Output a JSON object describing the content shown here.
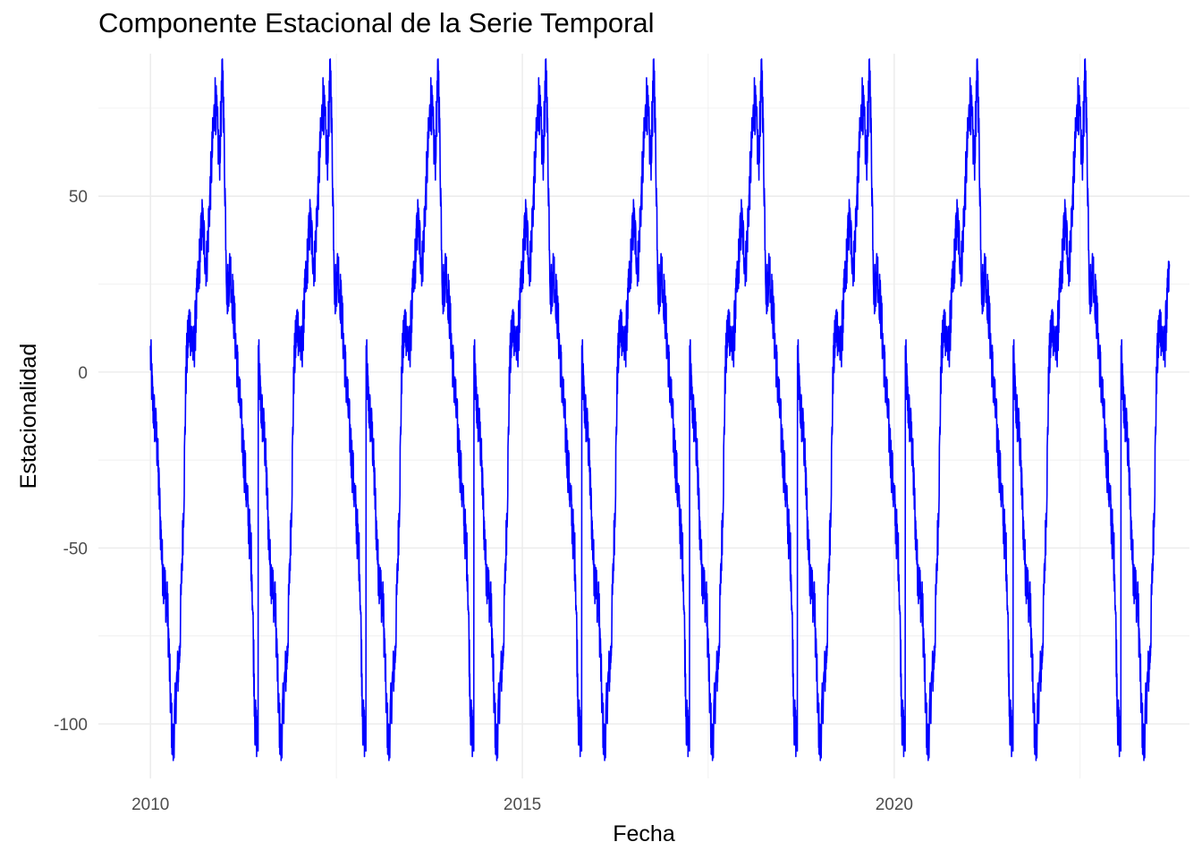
{
  "chart_data": {
    "type": "line",
    "title": "Componente Estacional de la Serie Temporal",
    "xlabel": "Fecha",
    "ylabel": "Estacionalidad",
    "x_ticks": [
      "2010",
      "2015",
      "2020"
    ],
    "x_tick_values": [
      2010,
      2015,
      2020
    ],
    "y_ticks": [
      "-100",
      "-50",
      "0",
      "50"
    ],
    "y_tick_values": [
      -100,
      -50,
      0,
      50
    ],
    "xlim": [
      2009.3,
      2023.97
    ],
    "ylim": [
      -115.5,
      90.5
    ],
    "grid": true,
    "legend": "none",
    "line_color": "#0000ff",
    "period_years": 1.45,
    "cycle_count": 9.5,
    "series": [
      {
        "x_start": 2010.0,
        "x_end": 2023.7,
        "cycle_profile": [
          {
            "phase": 0.0,
            "value": 5
          },
          {
            "phase": 0.02,
            "value": -8
          },
          {
            "phase": 0.06,
            "value": -20
          },
          {
            "phase": 0.11,
            "value": -55
          },
          {
            "phase": 0.16,
            "value": -68
          },
          {
            "phase": 0.19,
            "value": -97
          },
          {
            "phase": 0.21,
            "value": -107
          },
          {
            "phase": 0.24,
            "value": -90
          },
          {
            "phase": 0.27,
            "value": -80
          },
          {
            "phase": 0.31,
            "value": -35
          },
          {
            "phase": 0.33,
            "value": 0
          },
          {
            "phase": 0.36,
            "value": 15
          },
          {
            "phase": 0.4,
            "value": 5
          },
          {
            "phase": 0.44,
            "value": 25
          },
          {
            "phase": 0.48,
            "value": 43
          },
          {
            "phase": 0.52,
            "value": 30
          },
          {
            "phase": 0.56,
            "value": 55
          },
          {
            "phase": 0.6,
            "value": 78
          },
          {
            "phase": 0.64,
            "value": 60
          },
          {
            "phase": 0.67,
            "value": 87
          },
          {
            "phase": 0.71,
            "value": 22
          },
          {
            "phase": 0.74,
            "value": 30
          },
          {
            "phase": 0.77,
            "value": 18
          },
          {
            "phase": 0.82,
            "value": -5
          },
          {
            "phase": 0.88,
            "value": -30
          },
          {
            "phase": 0.94,
            "value": -55
          },
          {
            "phase": 0.97,
            "value": -100
          },
          {
            "phase": 1.0,
            "value": -105
          }
        ]
      }
    ]
  }
}
